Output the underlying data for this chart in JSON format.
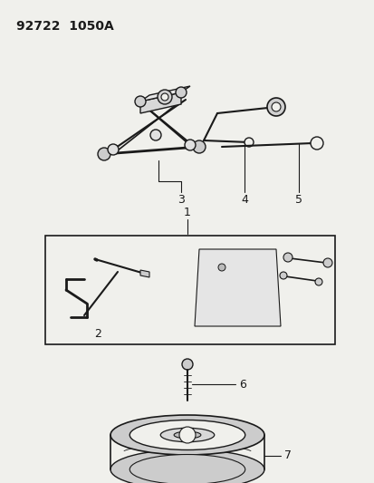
{
  "title": "92722  1050A",
  "bg_color": "#f0f0ec",
  "line_color": "#1a1a1a",
  "fig_width": 4.14,
  "fig_height": 5.33,
  "dpi": 100
}
